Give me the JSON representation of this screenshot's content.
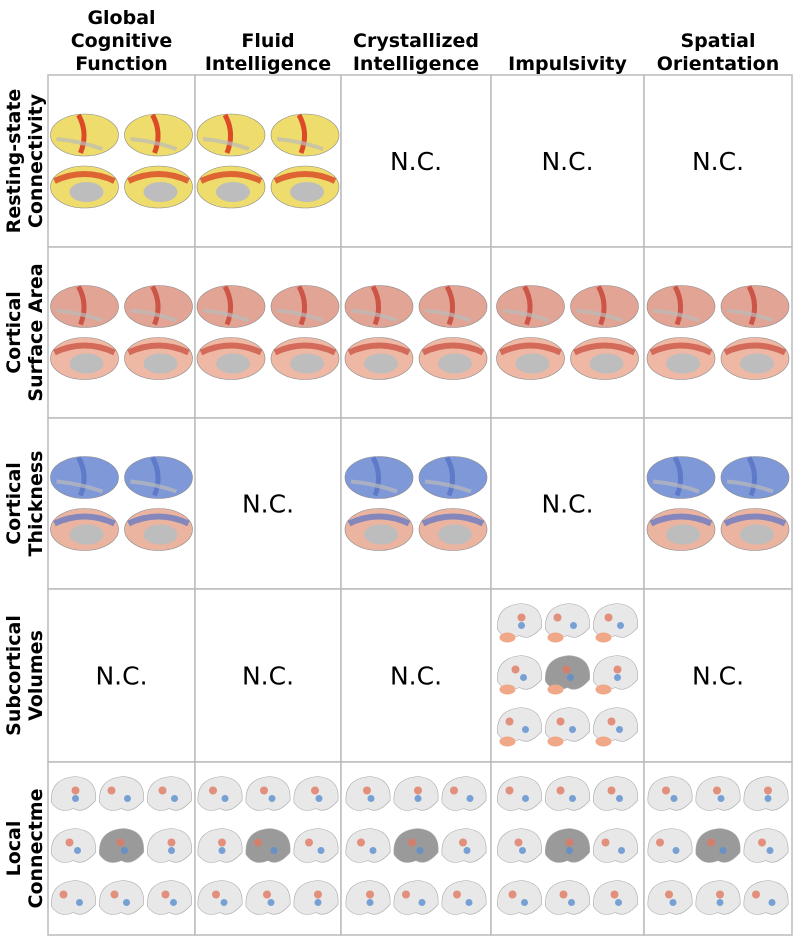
{
  "columns": [
    [
      "Global",
      "Cognitive",
      "Function"
    ],
    [
      "Fluid",
      "Intelligence"
    ],
    [
      "Crystallized",
      "Intelligence"
    ],
    [
      "Impulsivity"
    ],
    [
      "Spatial",
      "Orientation"
    ]
  ],
  "rows": [
    {
      "label": [
        "Resting-state",
        "Connectivity"
      ],
      "cells": [
        null,
        null,
        "N.C.",
        "N.C.",
        "N.C."
      ]
    },
    {
      "label": [
        "Cortical",
        "Surface Area"
      ],
      "cells": [
        null,
        null,
        null,
        null,
        null
      ]
    },
    {
      "label": [
        "Cortical",
        "Thickness"
      ],
      "cells": [
        null,
        "N.C.",
        null,
        "N.C.",
        null
      ]
    },
    {
      "label": [
        "Subcortical",
        "Volumes"
      ],
      "cells": [
        "N.C.",
        "N.C.",
        "N.C.",
        null,
        "N.C."
      ]
    },
    {
      "label": [
        "Local",
        "Connectme"
      ],
      "cells": [
        null,
        null,
        null,
        null,
        null
      ]
    }
  ]
}
